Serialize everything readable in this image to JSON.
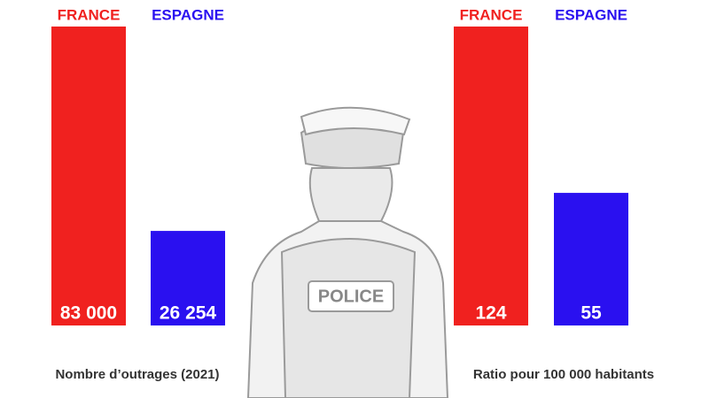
{
  "chart_data": [
    {
      "type": "bar",
      "categories": [
        "FRANCE",
        "ESPAGNE"
      ],
      "values": [
        83000,
        26254
      ],
      "value_labels": [
        "83 000",
        "26 254"
      ],
      "colors": [
        "#f0211f",
        "#2a10f0"
      ],
      "xlabel": "Nombre d’outrages (2021)",
      "ylim": [
        0,
        83000
      ]
    },
    {
      "type": "bar",
      "categories": [
        "FRANCE",
        "ESPAGNE"
      ],
      "values": [
        124,
        55
      ],
      "colors": [
        "#f0211f",
        "#2a10f0"
      ],
      "xlabel": "Ratio pour 100 000 habitants",
      "ylim": [
        0,
        124
      ]
    }
  ]
}
